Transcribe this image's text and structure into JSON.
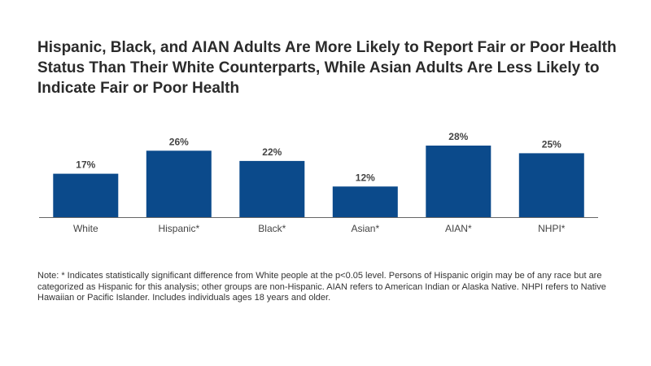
{
  "chart_data": {
    "type": "bar",
    "title": "Hispanic, Black, and AIAN Adults Are More Likely to Report Fair or Poor Health Status Than Their White Counterparts, While Asian Adults Are Less Likely to Indicate Fair or Poor Health",
    "categories": [
      "White",
      "Hispanic*",
      "Black*",
      "Asian*",
      "AIAN*",
      "NHPI*"
    ],
    "values": [
      17,
      26,
      22,
      12,
      28,
      25
    ],
    "value_labels": [
      "17%",
      "26%",
      "22%",
      "12%",
      "28%",
      "25%"
    ],
    "xlabel": "",
    "ylabel": "",
    "ylim": [
      0,
      28
    ],
    "grid": false,
    "legend": "none",
    "bar_color": "#0b4a8b",
    "baseline_color": "#666666"
  },
  "note": "Note: * Indicates statistically significant difference from White people at the p<0.05 level. Persons of Hispanic origin may be of any race but are categorized as Hispanic for this analysis; other groups are non-Hispanic. AIAN refers to American Indian or Alaska Native. NHPI refers to Native Hawaiian or Pacific Islander. Includes individuals ages 18 years and older."
}
